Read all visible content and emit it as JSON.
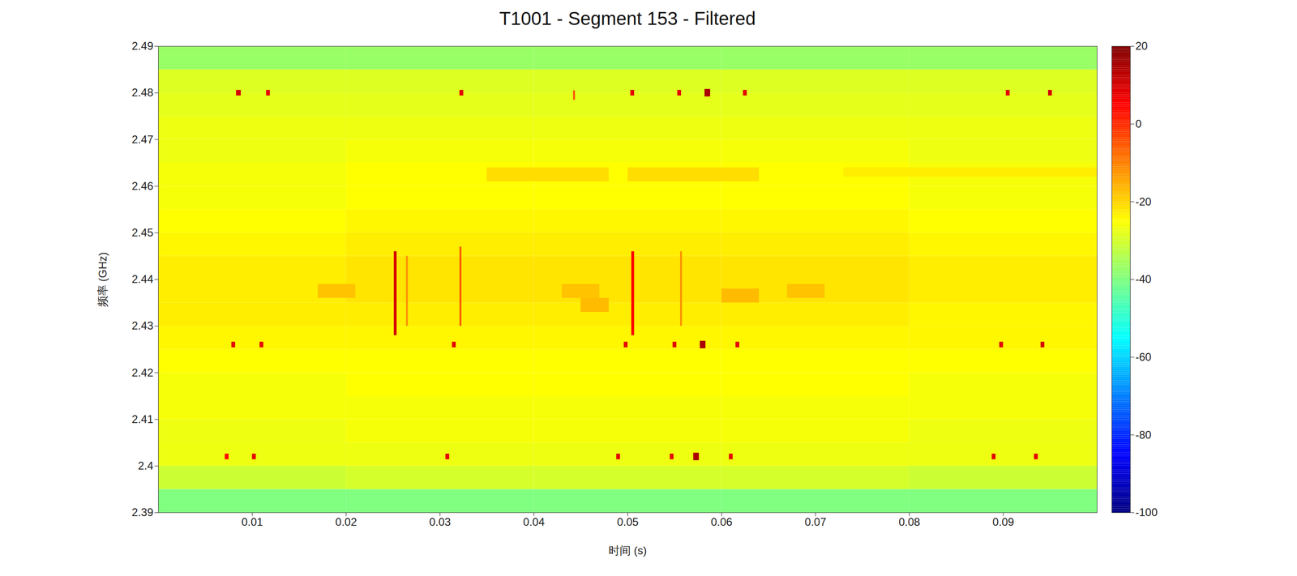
{
  "chart_data": {
    "type": "heatmap",
    "title": "T1001 - Segment 153 - Filtered",
    "x_label": "时间 (s)",
    "y_label": "频率 (GHz)",
    "xlim": [
      0,
      0.1
    ],
    "xticks": [
      0.01,
      0.02,
      0.03,
      0.04,
      0.05,
      0.06,
      0.07,
      0.08,
      0.09
    ],
    "ylim": [
      2.39,
      2.49
    ],
    "yticks": [
      2.39,
      2.4,
      2.41,
      2.42,
      2.43,
      2.44,
      2.45,
      2.46,
      2.47,
      2.48,
      2.49
    ],
    "colorbar": {
      "range": [
        -100,
        20
      ],
      "ticks": [
        -100,
        -80,
        -60,
        -40,
        -20,
        0,
        20
      ]
    },
    "cells": {
      "t_edges": [
        0,
        0.02,
        0.04,
        0.06,
        0.08,
        0.1
      ],
      "f_edges": [
        2.39,
        2.395,
        2.4,
        2.405,
        2.41,
        2.415,
        2.42,
        2.425,
        2.43,
        2.435,
        2.44,
        2.445,
        2.45,
        2.455,
        2.46,
        2.465,
        2.47,
        2.475,
        2.48,
        2.485,
        2.49
      ],
      "values": [
        [
          -40,
          -40,
          -40,
          -40,
          -40
        ],
        [
          -31,
          -30,
          -30,
          -30,
          -31
        ],
        [
          -27,
          -27,
          -27,
          -27,
          -27
        ],
        [
          -27,
          -26,
          -26,
          -26,
          -27
        ],
        [
          -26,
          -26,
          -26,
          -26,
          -26
        ],
        [
          -26,
          -25,
          -25,
          -25,
          -26
        ],
        [
          -25,
          -25,
          -25,
          -25,
          -25
        ],
        [
          -24,
          -24,
          -24,
          -24,
          -24
        ],
        [
          -23,
          -23,
          -23,
          -23,
          -24
        ],
        [
          -23,
          -22,
          -22,
          -22,
          -23
        ],
        [
          -23,
          -22,
          -22,
          -22,
          -23
        ],
        [
          -24,
          -23,
          -23,
          -23,
          -24
        ],
        [
          -25,
          -24,
          -24,
          -24,
          -25
        ],
        [
          -26,
          -25,
          -25,
          -25,
          -26
        ],
        [
          -26,
          -25,
          -25,
          -25,
          -26
        ],
        [
          -27,
          -26,
          -26,
          -26,
          -27
        ],
        [
          -27,
          -27,
          -27,
          -27,
          -27
        ],
        [
          -28,
          -28,
          -28,
          -28,
          -28
        ],
        [
          -29,
          -29,
          -29,
          -29,
          -29
        ],
        [
          -37,
          -37,
          -37,
          -37,
          -37
        ]
      ]
    },
    "bursts": [
      {
        "t0": 0.0083,
        "t1": 0.0088,
        "f0": 2.4794,
        "f1": 2.4806,
        "value": 10
      },
      {
        "t0": 0.0115,
        "t1": 0.0119,
        "f0": 2.4794,
        "f1": 2.4806,
        "value": 8
      },
      {
        "t0": 0.0321,
        "t1": 0.0325,
        "f0": 2.4794,
        "f1": 2.4806,
        "value": 8
      },
      {
        "t0": 0.0442,
        "t1": 0.0444,
        "f0": 2.4785,
        "f1": 2.4805,
        "value": -5
      },
      {
        "t0": 0.0503,
        "t1": 0.0507,
        "f0": 2.4794,
        "f1": 2.4806,
        "value": 8
      },
      {
        "t0": 0.0553,
        "t1": 0.0557,
        "f0": 2.4794,
        "f1": 2.4806,
        "value": 8
      },
      {
        "t0": 0.0582,
        "t1": 0.0588,
        "f0": 2.4792,
        "f1": 2.4808,
        "value": 15
      },
      {
        "t0": 0.0623,
        "t1": 0.0627,
        "f0": 2.4794,
        "f1": 2.4806,
        "value": 8
      },
      {
        "t0": 0.0903,
        "t1": 0.0907,
        "f0": 2.4794,
        "f1": 2.4806,
        "value": 8
      },
      {
        "t0": 0.0948,
        "t1": 0.0952,
        "f0": 2.4794,
        "f1": 2.4806,
        "value": 10
      },
      {
        "t0": 0.0078,
        "t1": 0.0082,
        "f0": 2.4254,
        "f1": 2.4266,
        "value": 8
      },
      {
        "t0": 0.0108,
        "t1": 0.0112,
        "f0": 2.4254,
        "f1": 2.4266,
        "value": 8
      },
      {
        "t0": 0.0313,
        "t1": 0.0317,
        "f0": 2.4254,
        "f1": 2.4266,
        "value": 8
      },
      {
        "t0": 0.0496,
        "t1": 0.05,
        "f0": 2.4254,
        "f1": 2.4266,
        "value": 8
      },
      {
        "t0": 0.0548,
        "t1": 0.0552,
        "f0": 2.4254,
        "f1": 2.4266,
        "value": 8
      },
      {
        "t0": 0.0577,
        "t1": 0.0583,
        "f0": 2.4252,
        "f1": 2.4268,
        "value": 15
      },
      {
        "t0": 0.0615,
        "t1": 0.0619,
        "f0": 2.4254,
        "f1": 2.4266,
        "value": 8
      },
      {
        "t0": 0.0896,
        "t1": 0.09,
        "f0": 2.4254,
        "f1": 2.4266,
        "value": 8
      },
      {
        "t0": 0.094,
        "t1": 0.0944,
        "f0": 2.4254,
        "f1": 2.4266,
        "value": 10
      },
      {
        "t0": 0.0071,
        "t1": 0.0075,
        "f0": 2.4014,
        "f1": 2.4026,
        "value": 5
      },
      {
        "t0": 0.01,
        "t1": 0.0104,
        "f0": 2.4014,
        "f1": 2.4026,
        "value": 8
      },
      {
        "t0": 0.0306,
        "t1": 0.031,
        "f0": 2.4014,
        "f1": 2.4026,
        "value": 8
      },
      {
        "t0": 0.0488,
        "t1": 0.0492,
        "f0": 2.4014,
        "f1": 2.4026,
        "value": 8
      },
      {
        "t0": 0.0545,
        "t1": 0.0549,
        "f0": 2.4014,
        "f1": 2.4026,
        "value": 8
      },
      {
        "t0": 0.057,
        "t1": 0.0576,
        "f0": 2.4012,
        "f1": 2.4028,
        "value": 15
      },
      {
        "t0": 0.0608,
        "t1": 0.0612,
        "f0": 2.4014,
        "f1": 2.4026,
        "value": 8
      },
      {
        "t0": 0.0888,
        "t1": 0.0892,
        "f0": 2.4014,
        "f1": 2.4026,
        "value": 8
      },
      {
        "t0": 0.0933,
        "t1": 0.0937,
        "f0": 2.4014,
        "f1": 2.4026,
        "value": 8
      },
      {
        "t0": 0.0251,
        "t1": 0.0254,
        "f0": 2.428,
        "f1": 2.446,
        "value": 10
      },
      {
        "t0": 0.0264,
        "t1": 0.0266,
        "f0": 2.43,
        "f1": 2.445,
        "value": -12
      },
      {
        "t0": 0.0321,
        "t1": 0.0323,
        "f0": 2.43,
        "f1": 2.447,
        "value": -5
      },
      {
        "t0": 0.0504,
        "t1": 0.0507,
        "f0": 2.428,
        "f1": 2.446,
        "value": 5
      },
      {
        "t0": 0.0556,
        "t1": 0.0558,
        "f0": 2.43,
        "f1": 2.446,
        "value": -12
      },
      {
        "t0": 0.017,
        "t1": 0.021,
        "f0": 2.436,
        "f1": 2.439,
        "value": -18
      },
      {
        "t0": 0.043,
        "t1": 0.047,
        "f0": 2.436,
        "f1": 2.439,
        "value": -18
      },
      {
        "t0": 0.045,
        "t1": 0.048,
        "f0": 2.433,
        "f1": 2.436,
        "value": -17
      },
      {
        "t0": 0.06,
        "t1": 0.064,
        "f0": 2.435,
        "f1": 2.438,
        "value": -17
      },
      {
        "t0": 0.067,
        "t1": 0.071,
        "f0": 2.436,
        "f1": 2.439,
        "value": -18
      },
      {
        "t0": 0.035,
        "t1": 0.048,
        "f0": 2.461,
        "f1": 2.464,
        "value": -21
      },
      {
        "t0": 0.05,
        "t1": 0.064,
        "f0": 2.461,
        "f1": 2.464,
        "value": -21
      },
      {
        "t0": 0.073,
        "t1": 0.1,
        "f0": 2.462,
        "f1": 2.464,
        "value": -23
      }
    ]
  }
}
